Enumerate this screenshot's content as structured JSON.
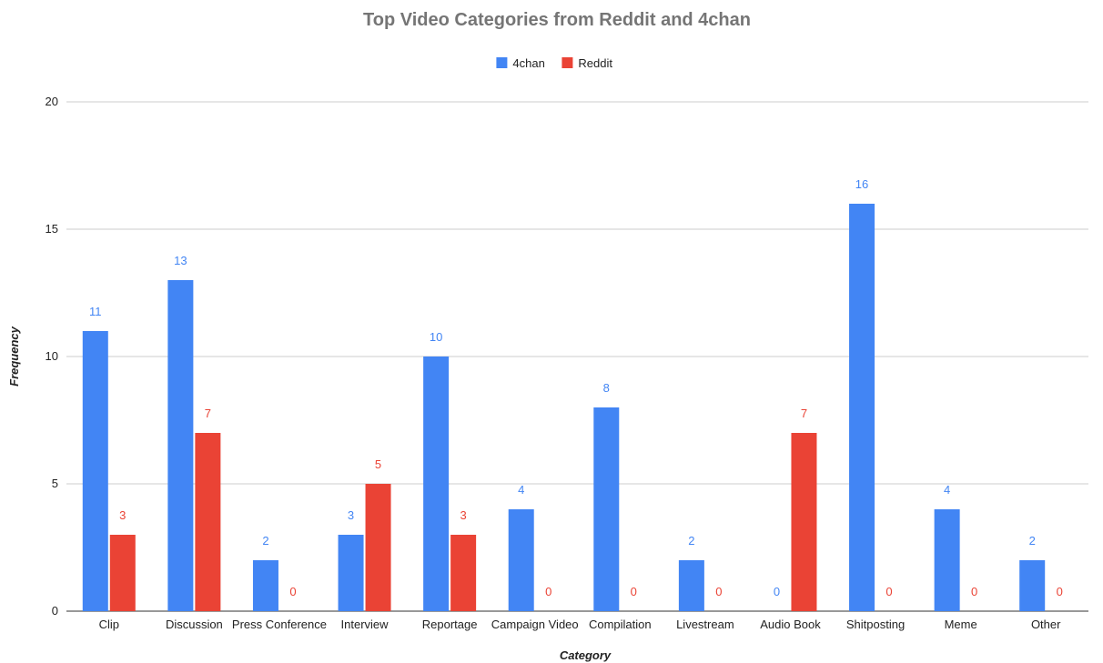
{
  "chart_data": {
    "type": "bar",
    "title": "Top Video Categories from Reddit and 4chan",
    "xlabel": "Category",
    "ylabel": "Frequency",
    "ylim": [
      0,
      20
    ],
    "yticks": [
      0,
      5,
      10,
      15,
      20
    ],
    "grid": true,
    "legend_position": "top",
    "categories": [
      "Clip",
      "Discussion",
      "Press Conference",
      "Interview",
      "Reportage",
      "Campaign Video",
      "Compilation",
      "Livestream",
      "Audio Book",
      "Shitposting",
      "Meme",
      "Other"
    ],
    "series": [
      {
        "name": "4chan",
        "color": "#4285f4",
        "values": [
          11,
          13,
          2,
          3,
          10,
          4,
          8,
          2,
          0,
          16,
          4,
          2
        ]
      },
      {
        "name": "Reddit",
        "color": "#ea4335",
        "values": [
          3,
          7,
          0,
          5,
          3,
          0,
          0,
          0,
          7,
          0,
          0,
          0
        ]
      }
    ]
  }
}
